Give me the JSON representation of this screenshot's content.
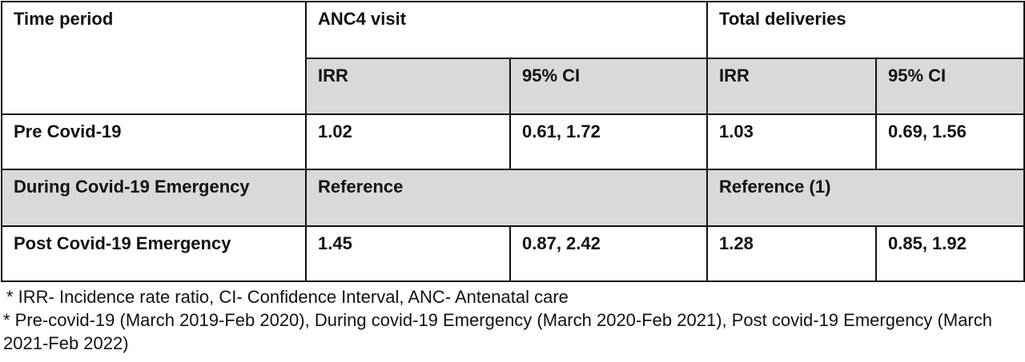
{
  "table": {
    "headers": {
      "time_period": "Time period",
      "anc4_visit": "ANC4 visit",
      "total_deliveries": "Total deliveries",
      "irr": "IRR",
      "ci": "95% CI"
    },
    "rows": [
      {
        "period": "Pre Covid-19",
        "anc_irr": "1.02",
        "anc_ci": "0.61, 1.72",
        "del_irr": "1.03",
        "del_ci": "0.69, 1.56"
      },
      {
        "period": "During Covid-19 Emergency",
        "anc_ref": "Reference",
        "del_ref": "Reference (1)"
      },
      {
        "period": "Post Covid-19 Emergency",
        "anc_irr": "1.45",
        "anc_ci": "0.87, 2.42",
        "del_irr": "1.28",
        "del_ci": "0.85, 1.92"
      }
    ]
  },
  "footnotes": [
    "* IRR- Incidence rate ratio, CI- Confidence Interval, ANC- Antenatal care",
    "* Pre-covid-19 (March 2019-Feb 2020), During covid-19 Emergency (March 2020-Feb 2021), Post covid-19 Emergency (March 2021-Feb 2022)"
  ],
  "colors": {
    "header_gray": "#d9d9d9",
    "border": "#111111"
  }
}
